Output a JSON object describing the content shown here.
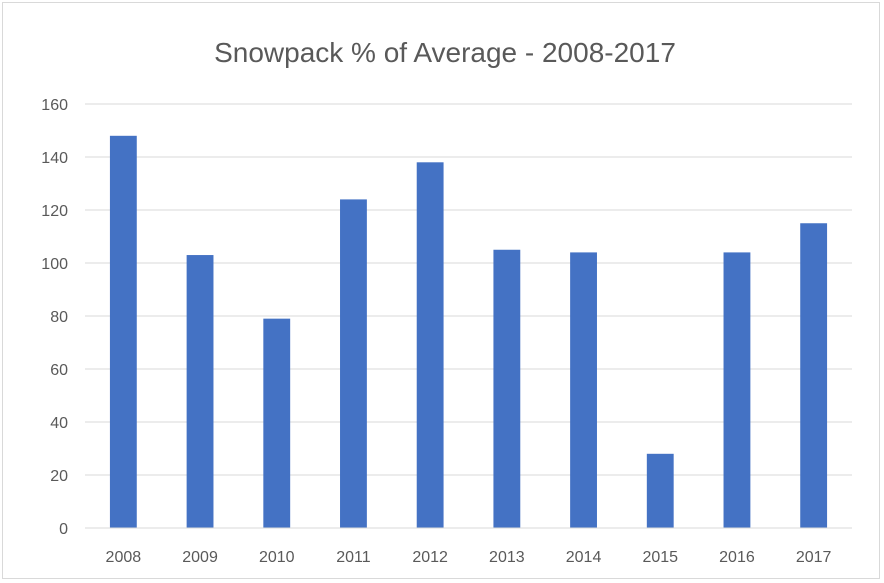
{
  "chart_data": {
    "type": "bar",
    "title": "Snowpack % of Average - 2008-2017",
    "xlabel": "",
    "ylabel": "",
    "categories": [
      "2008",
      "2009",
      "2010",
      "2011",
      "2012",
      "2013",
      "2014",
      "2015",
      "2016",
      "2017"
    ],
    "values": [
      148,
      103,
      79,
      124,
      138,
      105,
      104,
      28,
      104,
      115
    ],
    "ylim": [
      0,
      160
    ],
    "yticks": [
      "0",
      "20",
      "40",
      "60",
      "80",
      "100",
      "120",
      "140",
      "160"
    ],
    "grid": true,
    "legend": "none",
    "bar_color": "#4472c4",
    "grid_color": "#d9d9d9"
  }
}
